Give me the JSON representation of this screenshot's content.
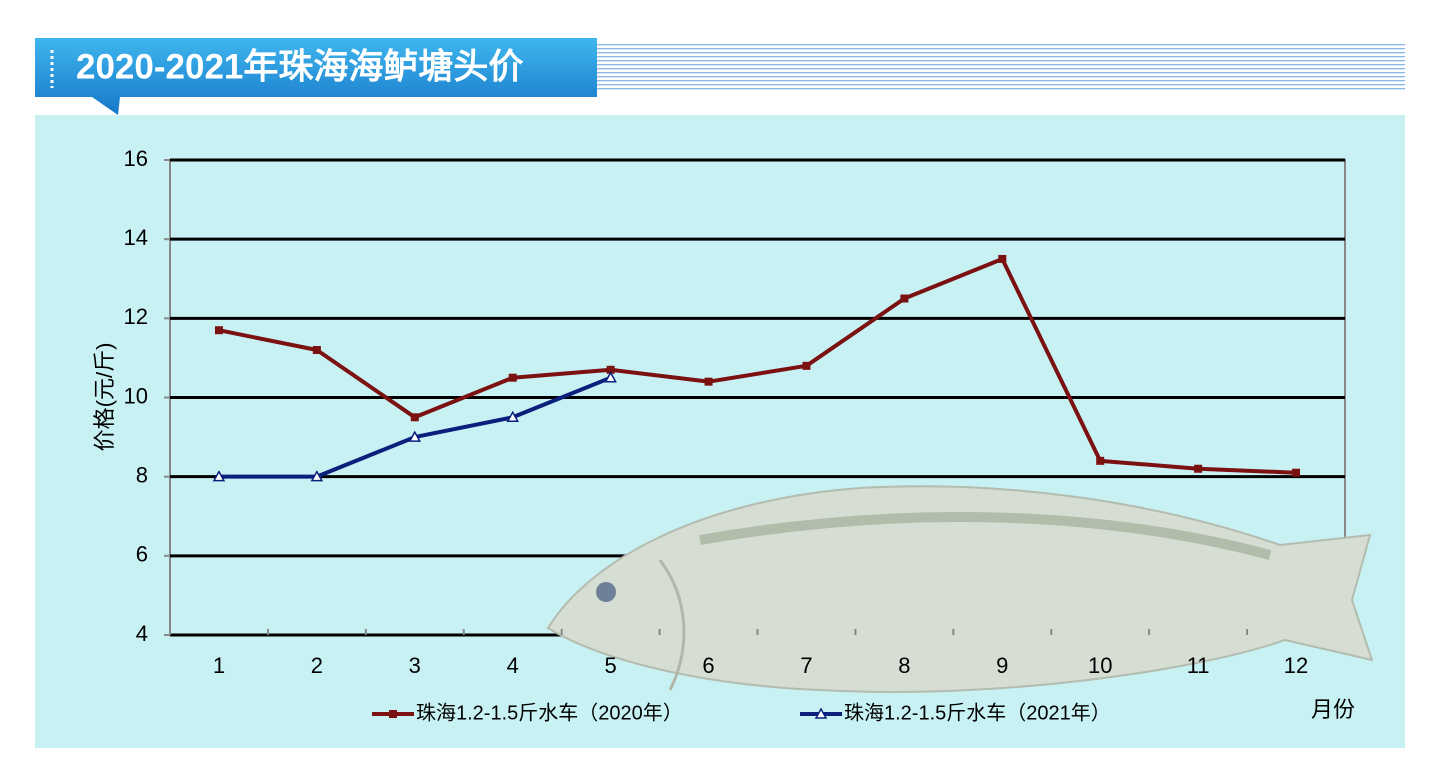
{
  "chart_data": {
    "type": "line",
    "title": "2020-2021年珠海海鲈塘头价",
    "ylabel": "价格(元/斤)",
    "xlabel": "月份",
    "categories": [
      "1",
      "2",
      "3",
      "4",
      "5",
      "6",
      "7",
      "8",
      "9",
      "10",
      "11",
      "12"
    ],
    "series": [
      {
        "name": "珠海1.2-1.5斤水车（2020年）",
        "color": "#7b1111",
        "marker": "square",
        "values": [
          11.7,
          11.2,
          9.5,
          10.5,
          10.7,
          10.4,
          10.8,
          12.5,
          13.5,
          8.4,
          8.2,
          8.1
        ]
      },
      {
        "name": "珠海1.2-1.5斤水车（2021年）",
        "color": "#0b1f7c",
        "marker": "triangle",
        "values": [
          8,
          8,
          9,
          9.5,
          10.5,
          null,
          null,
          null,
          null,
          null,
          null,
          null
        ]
      }
    ],
    "ylim": [
      4,
      16
    ],
    "yticks": [
      4,
      6,
      8,
      10,
      12,
      14,
      16
    ],
    "grid": true,
    "legend": "bottom"
  }
}
